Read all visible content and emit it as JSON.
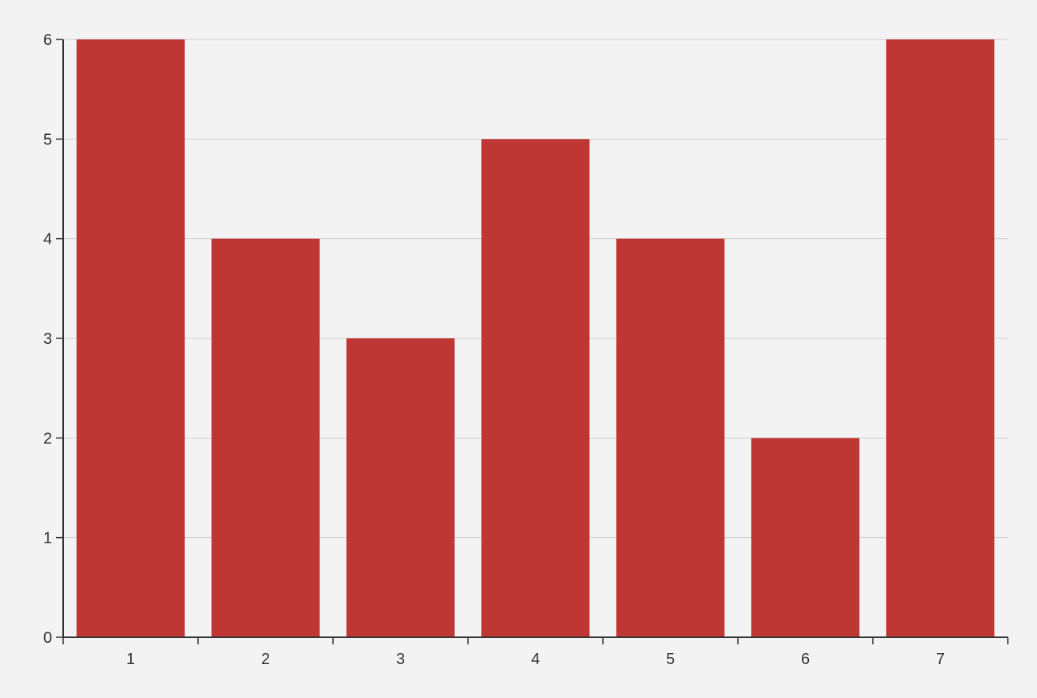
{
  "chart_data": {
    "type": "bar",
    "categories": [
      "1",
      "2",
      "3",
      "4",
      "5",
      "6",
      "7"
    ],
    "values": [
      6,
      4,
      3,
      5,
      4,
      2,
      6
    ],
    "title": "",
    "xlabel": "",
    "ylabel": "",
    "ylim": [
      0,
      6
    ],
    "yticks": [
      "0",
      "1",
      "2",
      "3",
      "4",
      "5",
      "6"
    ],
    "grid": true,
    "colors": {
      "bar": "#bf3735",
      "background": "#f3f3f3",
      "grid": "#cccccc",
      "axis": "#333333"
    }
  }
}
